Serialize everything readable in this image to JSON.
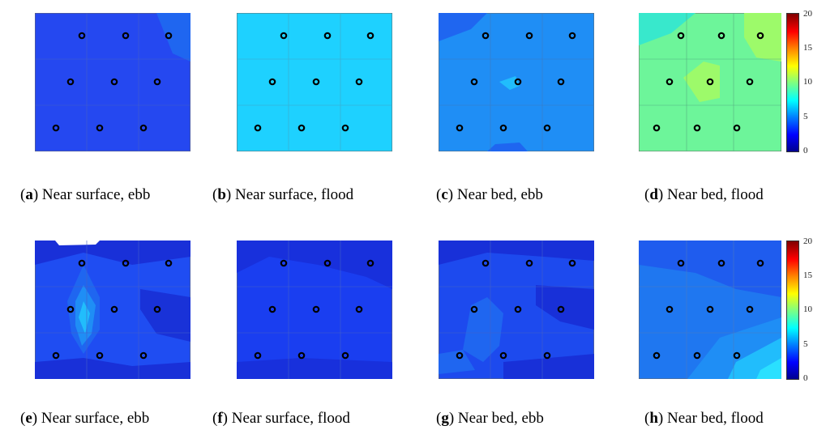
{
  "figure": {
    "colorbar": {
      "ticks": [
        "20",
        "15",
        "10",
        "5",
        "0"
      ],
      "range": [
        0,
        20
      ],
      "colormap": "jet"
    },
    "panels": [
      {
        "letter": "a",
        "caption": "Near surface, ebb",
        "bg": "#2548f0"
      },
      {
        "letter": "b",
        "caption": "Near surface, flood",
        "bg": "#1ed1ff"
      },
      {
        "letter": "c",
        "caption": "Near bed, ebb",
        "bg": "#1f8ef5"
      },
      {
        "letter": "d",
        "caption": "Near bed, flood",
        "bg": "#6df59a"
      },
      {
        "letter": "e",
        "caption": "Near surface, ebb",
        "bg": "#1f4df2"
      },
      {
        "letter": "f",
        "caption": "Near surface, flood",
        "bg": "#1a3ef0"
      },
      {
        "letter": "g",
        "caption": "Near bed, ebb",
        "bg": "#1d4aee"
      },
      {
        "letter": "h",
        "caption": "Near bed, flood",
        "bg": "#1f77f0"
      }
    ]
  }
}
